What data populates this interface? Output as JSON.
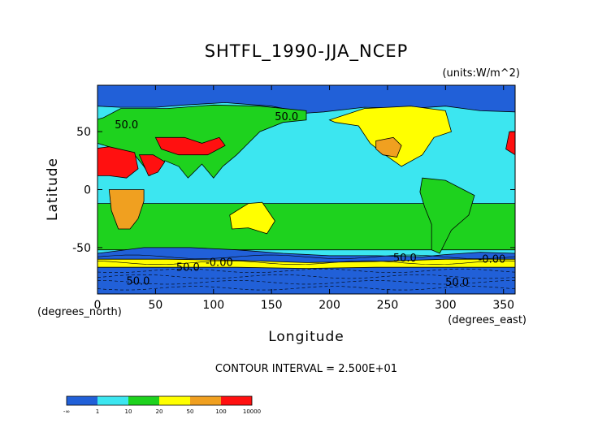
{
  "chart_data": {
    "type": "heatmap",
    "title": "SHTFL_1990-JJA_NCEP",
    "units_label": "(units:W/m^2)",
    "xlabel": "Longitude",
    "ylabel": "Latitude",
    "x_unit_label": "(degrees_east)",
    "y_unit_label": "(degrees_north)",
    "xlim": [
      0,
      360
    ],
    "ylim": [
      -90,
      90
    ],
    "x_ticks": [
      0,
      50,
      100,
      150,
      200,
      250,
      300,
      350
    ],
    "y_ticks": [
      -50,
      0,
      50
    ],
    "contour_interval_text": "CONTOUR INTERVAL = 2.500E+01",
    "contour_labels": [
      {
        "text": "50.0",
        "lon": 25,
        "lat": 53
      },
      {
        "text": "50.0",
        "lon": 163,
        "lat": 60
      },
      {
        "text": "50.0",
        "lon": 265,
        "lat": -62
      },
      {
        "text": "50.0",
        "lon": 78,
        "lat": -70
      },
      {
        "text": "-0.00",
        "lon": 105,
        "lat": -66
      },
      {
        "text": "-0.00",
        "lon": 340,
        "lat": -63
      },
      {
        "text": "50.0",
        "lon": 310,
        "lat": -83
      },
      {
        "text": "50.0",
        "lon": 35,
        "lat": -82
      }
    ],
    "colorbar": {
      "bins": [
        {
          "color": "#2160d8",
          "from_label": "-∞",
          "to_label": "1"
        },
        {
          "color": "#3ce6f0",
          "from_label": "1",
          "to_label": "10"
        },
        {
          "color": "#1ed21e",
          "from_label": "10",
          "to_label": "20"
        },
        {
          "color": "#ffff00",
          "from_label": "20",
          "to_label": "50"
        },
        {
          "color": "#f0a020",
          "from_label": "50",
          "to_label": "100"
        },
        {
          "color": "#ff1010",
          "from_label": "100",
          "to_label": "10000"
        }
      ],
      "tick_labels": [
        "-∞",
        "1",
        "10",
        "20",
        "50",
        "100",
        "10000"
      ]
    },
    "regions": [
      {
        "name": "global-background",
        "bin": 1
      },
      {
        "name": "arctic-ocean",
        "bin": 0
      },
      {
        "name": "southern-ocean",
        "bin": 0
      },
      {
        "name": "antarctica-belt",
        "bin": 3
      },
      {
        "name": "eurasia",
        "bin": 2
      },
      {
        "name": "north-america",
        "bin": 3
      },
      {
        "name": "sahara",
        "bin": 5
      },
      {
        "name": "arabia",
        "bin": 5
      },
      {
        "name": "central-asia",
        "bin": 5
      },
      {
        "name": "southwest-us",
        "bin": 4
      },
      {
        "name": "southern-africa",
        "bin": 4
      },
      {
        "name": "australia",
        "bin": 3
      },
      {
        "name": "south-america",
        "bin": 2
      },
      {
        "name": "southern-subtropical-band",
        "bin": 2
      }
    ]
  }
}
